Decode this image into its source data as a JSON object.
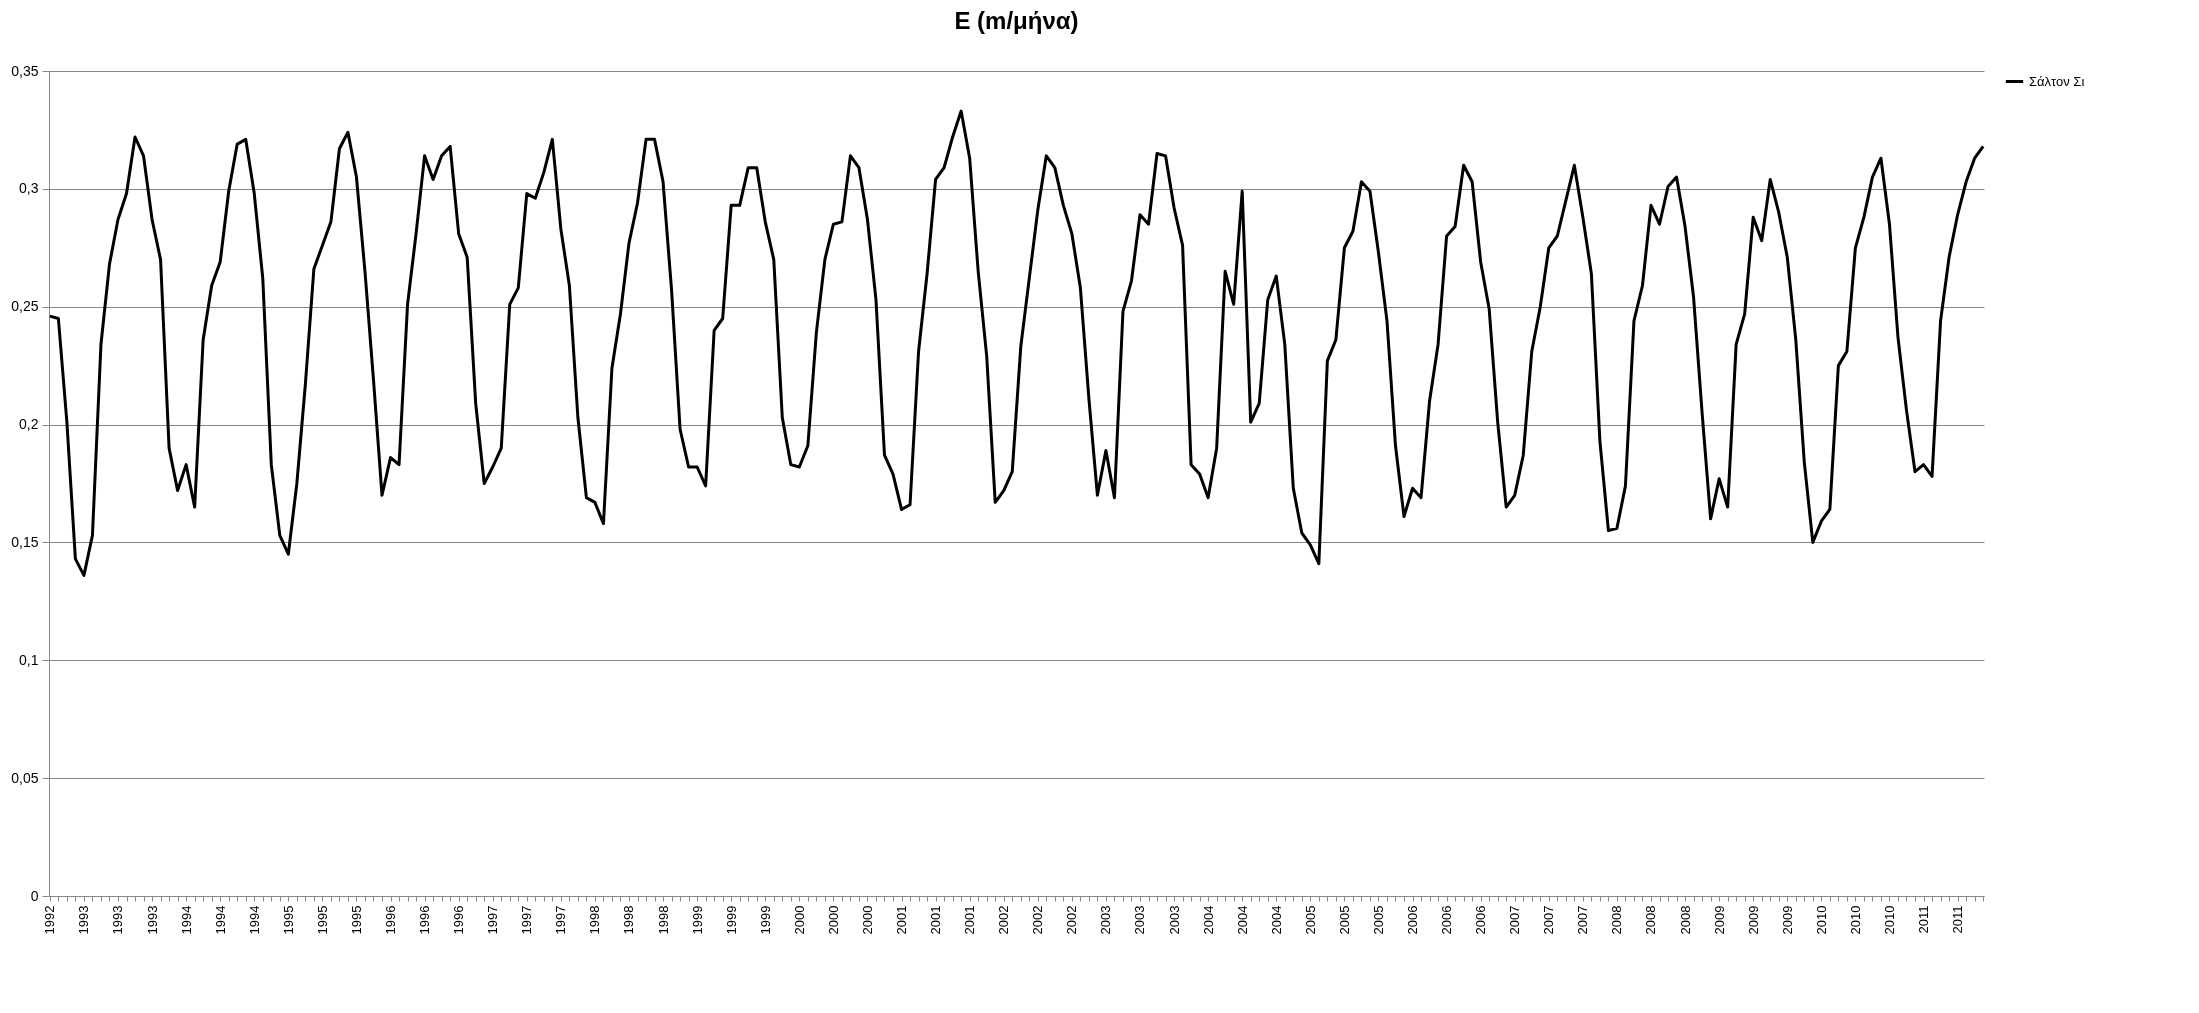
{
  "chart_data": {
    "type": "line",
    "title": "E (m/μήνα)",
    "categories": [
      "1992",
      null,
      null,
      null,
      "1993",
      null,
      null,
      null,
      "1993",
      null,
      null,
      null,
      "1993",
      null,
      null,
      null,
      "1994",
      null,
      null,
      null,
      "1994",
      null,
      null,
      null,
      "1994",
      null,
      null,
      null,
      "1995",
      null,
      null,
      null,
      "1995",
      null,
      null,
      null,
      "1995",
      null,
      null,
      null,
      "1996",
      null,
      null,
      null,
      "1996",
      null,
      null,
      null,
      "1996",
      null,
      null,
      null,
      "1997",
      null,
      null,
      null,
      "1997",
      null,
      null,
      null,
      "1997",
      null,
      null,
      null,
      "1998",
      null,
      null,
      null,
      "1998",
      null,
      null,
      null,
      "1998",
      null,
      null,
      null,
      "1999",
      null,
      null,
      null,
      "1999",
      null,
      null,
      null,
      "1999",
      null,
      null,
      null,
      "2000",
      null,
      null,
      null,
      "2000",
      null,
      null,
      null,
      "2000",
      null,
      null,
      null,
      "2001",
      null,
      null,
      null,
      "2001",
      null,
      null,
      null,
      "2001",
      null,
      null,
      null,
      "2002",
      null,
      null,
      null,
      "2002",
      null,
      null,
      null,
      "2002",
      null,
      null,
      null,
      "2003",
      null,
      null,
      null,
      "2003",
      null,
      null,
      null,
      "2003",
      null,
      null,
      null,
      "2004",
      null,
      null,
      null,
      "2004",
      null,
      null,
      null,
      "2004",
      null,
      null,
      null,
      "2005",
      null,
      null,
      null,
      "2005",
      null,
      null,
      null,
      "2005",
      null,
      null,
      null,
      "2006",
      null,
      null,
      null,
      "2006",
      null,
      null,
      null,
      "2006",
      null,
      null,
      null,
      "2007",
      null,
      null,
      null,
      "2007",
      null,
      null,
      null,
      "2007",
      null,
      null,
      null,
      "2008",
      null,
      null,
      null,
      "2008",
      null,
      null,
      null,
      "2008",
      null,
      null,
      null,
      "2009",
      null,
      null,
      null,
      "2009",
      null,
      null,
      null,
      "2009",
      null,
      null,
      null,
      "2010",
      null,
      null,
      null,
      "2010",
      null,
      null,
      null,
      "2010",
      null,
      null,
      null,
      "2011",
      null,
      null,
      null,
      "2011",
      null,
      null,
      null
    ],
    "series": [
      {
        "name": "Σάλτον Σι",
        "color": "#000000",
        "values": [
          0.246,
          0.245,
          0.201,
          0.143,
          0.136,
          0.153,
          0.234,
          0.268,
          0.287,
          0.298,
          0.322,
          0.314,
          0.287,
          0.27,
          0.19,
          0.172,
          0.183,
          0.165,
          0.236,
          0.259,
          0.269,
          0.299,
          0.319,
          0.321,
          0.298,
          0.262,
          0.183,
          0.153,
          0.145,
          0.175,
          0.217,
          0.266,
          0.276,
          0.286,
          0.317,
          0.324,
          0.305,
          0.265,
          0.219,
          0.17,
          0.186,
          0.183,
          0.251,
          0.281,
          0.314,
          0.304,
          0.314,
          0.318,
          0.281,
          0.271,
          0.209,
          0.175,
          0.182,
          0.19,
          0.251,
          0.258,
          0.298,
          0.296,
          0.307,
          0.321,
          0.283,
          0.259,
          0.203,
          0.169,
          0.167,
          0.158,
          0.224,
          0.247,
          0.277,
          0.294,
          0.321,
          0.321,
          0.303,
          0.257,
          0.198,
          0.182,
          0.182,
          0.174,
          0.24,
          0.245,
          0.293,
          0.293,
          0.309,
          0.309,
          0.286,
          0.27,
          0.203,
          0.183,
          0.182,
          0.191,
          0.239,
          0.27,
          0.285,
          0.286,
          0.314,
          0.309,
          0.287,
          0.253,
          0.187,
          0.179,
          0.164,
          0.166,
          0.231,
          0.264,
          0.304,
          0.309,
          0.322,
          0.333,
          0.313,
          0.265,
          0.229,
          0.167,
          0.172,
          0.18,
          0.233,
          0.262,
          0.291,
          0.314,
          0.309,
          0.293,
          0.281,
          0.258,
          0.211,
          0.17,
          0.189,
          0.169,
          0.248,
          0.261,
          0.289,
          0.285,
          0.315,
          0.314,
          0.292,
          0.276,
          0.183,
          0.179,
          0.169,
          0.19,
          0.265,
          0.251,
          0.299,
          0.201,
          0.209,
          0.253,
          0.263,
          0.234,
          0.173,
          0.154,
          0.149,
          0.141,
          0.227,
          0.236,
          0.275,
          0.282,
          0.303,
          0.299,
          0.273,
          0.244,
          0.191,
          0.161,
          0.173,
          0.169,
          0.21,
          0.234,
          0.28,
          0.284,
          0.31,
          0.303,
          0.269,
          0.249,
          0.201,
          0.165,
          0.17,
          0.187,
          0.231,
          0.25,
          0.275,
          0.28,
          0.295,
          0.31,
          0.288,
          0.264,
          0.193,
          0.155,
          0.156,
          0.174,
          0.244,
          0.259,
          0.293,
          0.285,
          0.301,
          0.305,
          0.284,
          0.254,
          0.205,
          0.16,
          0.177,
          0.165,
          0.234,
          0.247,
          0.288,
          0.278,
          0.304,
          0.29,
          0.271,
          0.236,
          0.184,
          0.15,
          0.159,
          0.164,
          0.225,
          0.231,
          0.275,
          0.288,
          0.305,
          0.313,
          0.285,
          0.237,
          0.206,
          0.18,
          0.183,
          0.178,
          0.244,
          0.271,
          0.289,
          0.303,
          0.313,
          0.318
        ]
      }
    ],
    "ylim": [
      0,
      0.35
    ],
    "yticks": [
      {
        "value": 0,
        "label": "0"
      },
      {
        "value": 0.05,
        "label": "0,05"
      },
      {
        "value": 0.1,
        "label": "0,1"
      },
      {
        "value": 0.15,
        "label": "0,15"
      },
      {
        "value": 0.2,
        "label": "0,2"
      },
      {
        "value": 0.25,
        "label": "0,25"
      },
      {
        "value": 0.3,
        "label": "0,3"
      },
      {
        "value": 0.35,
        "label": "0,35"
      }
    ],
    "grid": "y",
    "legend": "right"
  }
}
